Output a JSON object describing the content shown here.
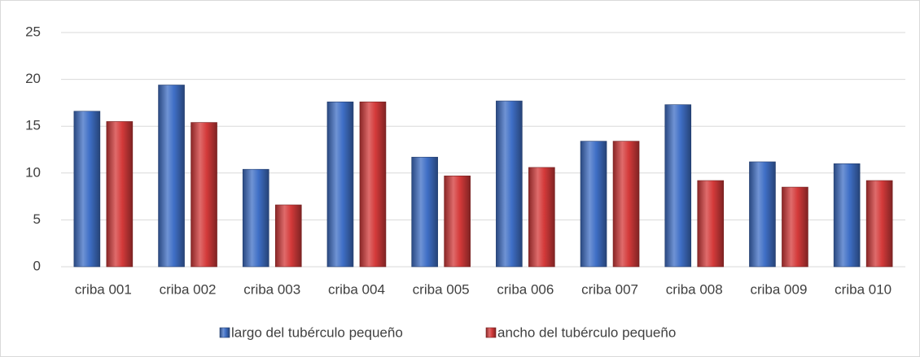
{
  "chart_data": {
    "type": "bar",
    "categories": [
      "criba 001",
      "criba 002",
      "criba 003",
      "criba 004",
      "criba 005",
      "criba 006",
      "criba 007",
      "criba 008",
      "criba 009",
      "criba 010"
    ],
    "series": [
      {
        "name": "largo del tubérculo pequeño",
        "color": "#3f6fc6",
        "values": [
          16.6,
          19.4,
          10.4,
          17.6,
          11.7,
          17.7,
          13.4,
          17.3,
          11.2,
          11.0
        ]
      },
      {
        "name": "ancho del tubérculo pequeño",
        "color": "#d43a3a",
        "values": [
          15.5,
          15.4,
          6.6,
          17.6,
          9.7,
          10.6,
          13.4,
          9.2,
          8.5,
          9.2
        ]
      }
    ],
    "ylim": [
      0,
      25
    ],
    "yticks": [
      0,
      5,
      10,
      15,
      20,
      25
    ],
    "grid": true,
    "legend": "bottom"
  }
}
